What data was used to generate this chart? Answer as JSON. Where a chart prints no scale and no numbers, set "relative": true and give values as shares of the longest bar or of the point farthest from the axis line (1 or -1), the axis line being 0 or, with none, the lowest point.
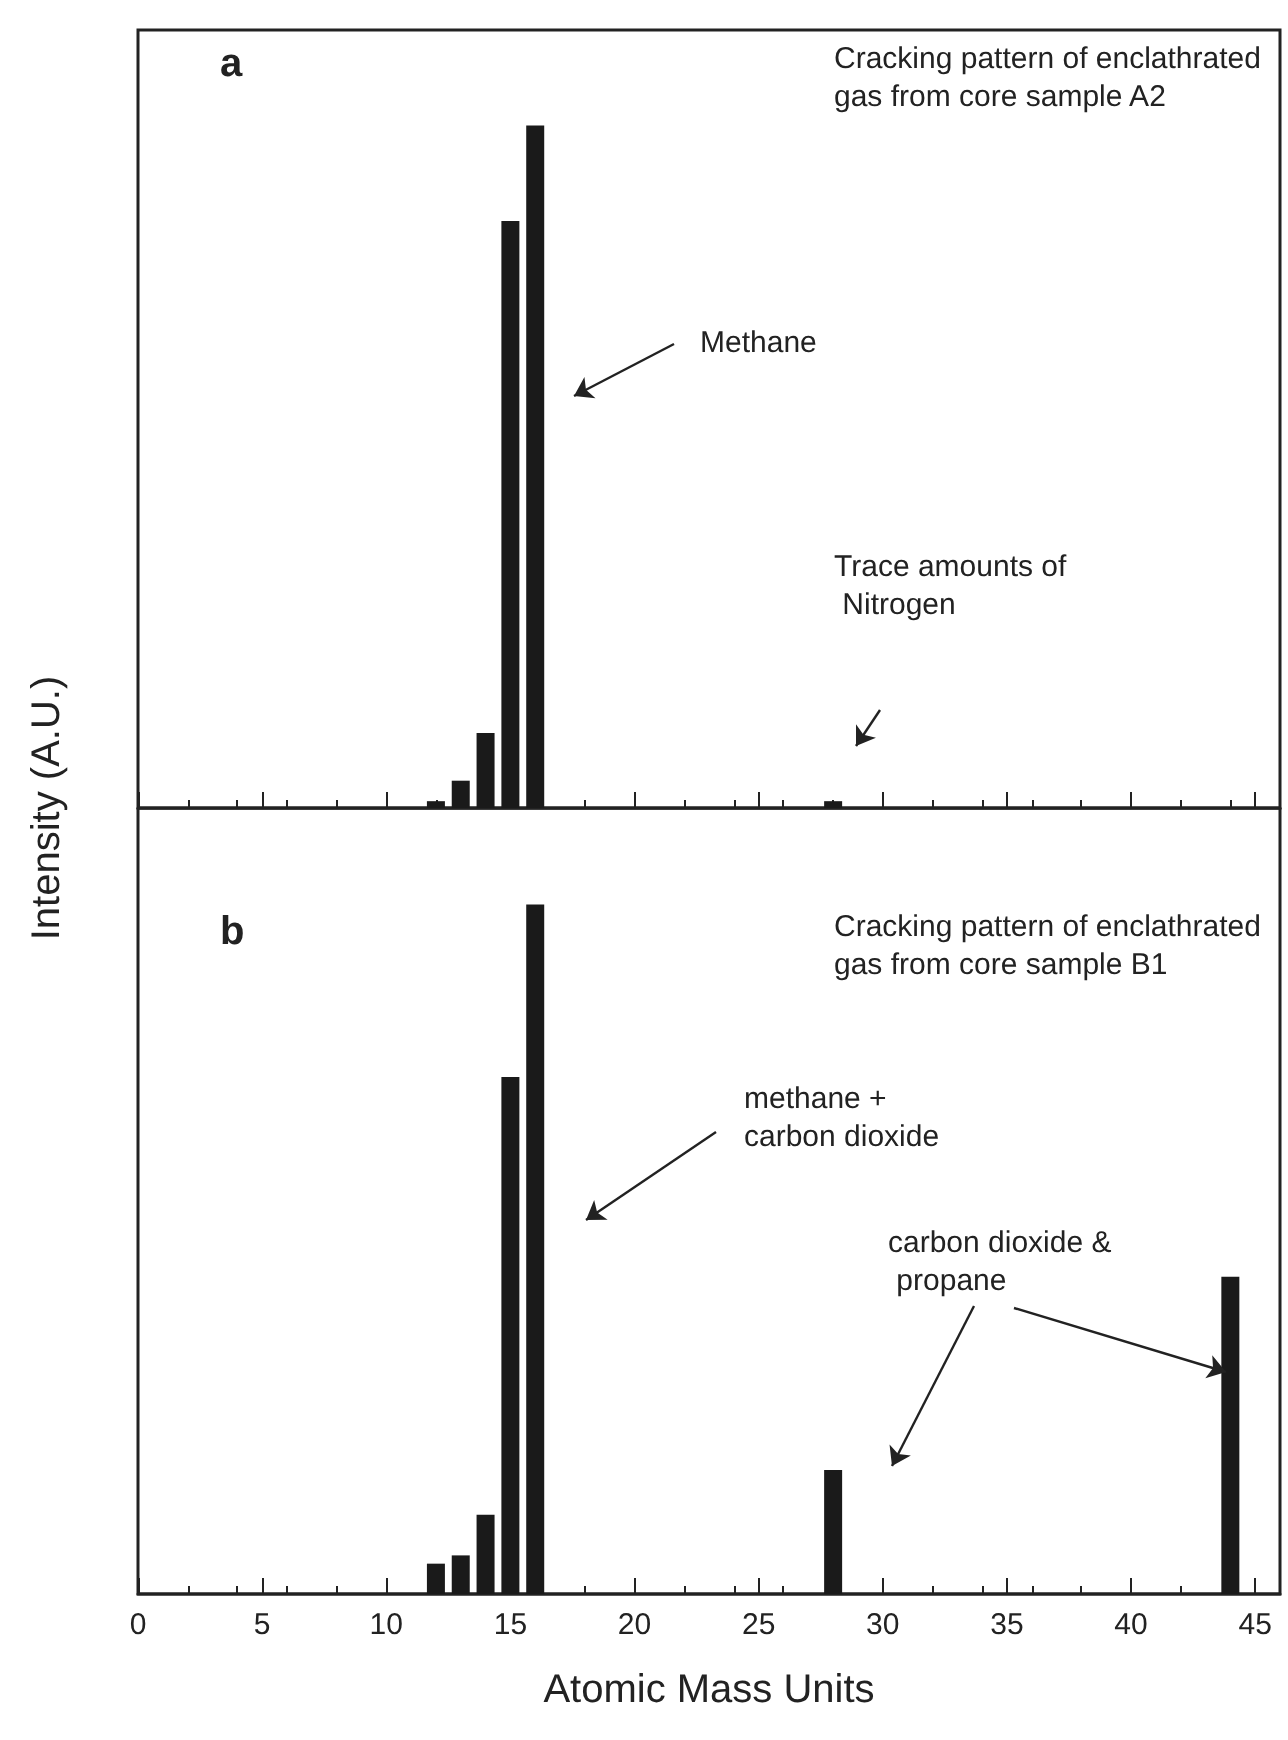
{
  "chart_data": [
    {
      "type": "bar",
      "relative": true,
      "ylabel": "Intensity (A.U.)",
      "x": [
        12,
        13,
        14,
        15,
        16,
        28
      ],
      "values": [
        0.01,
        0.04,
        0.11,
        0.86,
        1,
        0.01
      ],
      "color": "#1a1a1a",
      "xlim": [
        0,
        46
      ],
      "xticks": [
        0,
        5,
        10,
        15,
        20,
        25,
        30,
        35,
        40,
        45
      ],
      "tick_labels": false,
      "grid": false,
      "annotations": [
        "a",
        "Cracking pattern of enclathrated gas from core sample A2",
        "Methane",
        "Trace amounts of Nitrogen"
      ]
    },
    {
      "type": "bar",
      "relative": true,
      "xlabel": "Atomic Mass Units",
      "x": [
        12,
        13,
        14,
        15,
        16,
        28,
        44
      ],
      "values": [
        0.044,
        0.056,
        0.115,
        0.75,
        1,
        0.18,
        0.46
      ],
      "color": "#1a1a1a",
      "xlim": [
        0,
        46
      ],
      "xticks": [
        0,
        5,
        10,
        15,
        20,
        25,
        30,
        35,
        40,
        45
      ],
      "tick_labels": "x",
      "grid": false,
      "annotations": [
        "b",
        "Cracking pattern of enclathrated gas from core sample B1",
        "methane + carbon dioxide",
        "carbon dioxide & propane"
      ]
    }
  ]
}
